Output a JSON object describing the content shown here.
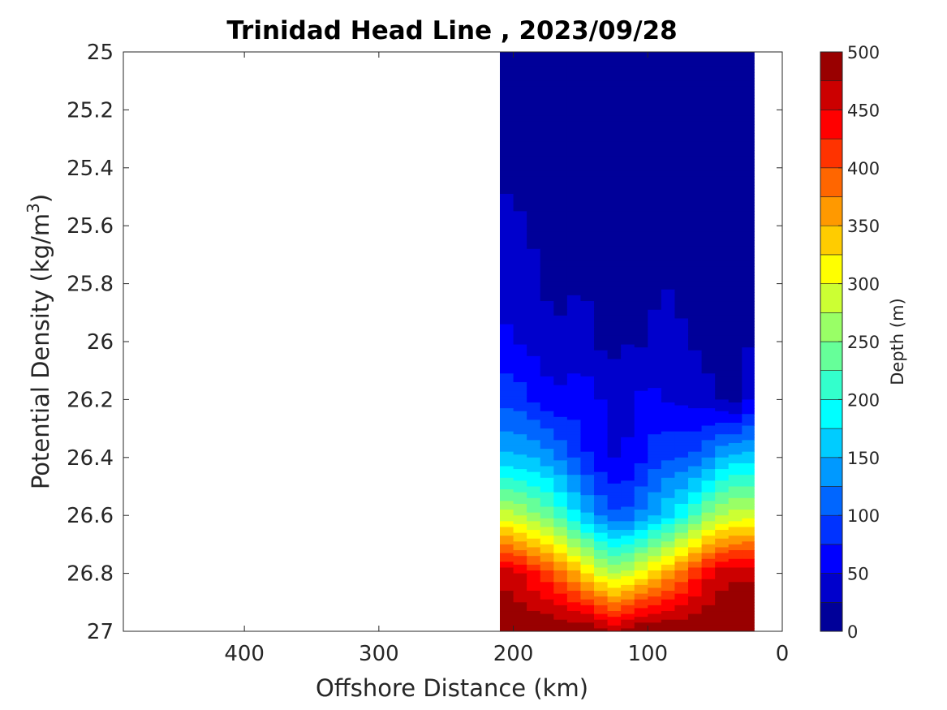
{
  "chart_data": {
    "type": "heatmap",
    "subtype": "filled-contour",
    "title": "Trinidad Head Line , 2023/09/28",
    "xlabel": "Offshore Distance (km)",
    "ylabel": "Potential Density (kg/m",
    "ylabel_sup": "3",
    "ylabel_end": ")",
    "colorbar_label": "Depth (m)",
    "x_reversed": true,
    "y_reversed": true,
    "xlim": [
      0,
      490
    ],
    "ylim": [
      25,
      27
    ],
    "x_ticks": [
      400,
      300,
      200,
      100,
      0
    ],
    "y_ticks": [
      25,
      25.2,
      25.4,
      25.6,
      25.8,
      26,
      26.2,
      26.4,
      26.6,
      26.8,
      27
    ],
    "y_tick_labels": [
      "25",
      "25.2",
      "25.4",
      "25.6",
      "25.8",
      "26",
      "26.2",
      "26.4",
      "26.6",
      "26.8",
      "27"
    ],
    "colorbar_ticks": [
      0,
      50,
      100,
      150,
      200,
      250,
      300,
      350,
      400,
      450,
      500
    ],
    "colorbar_range": [
      0,
      500
    ],
    "contour_step": 25,
    "colormap": "jet",
    "data_extent_x": [
      21,
      210
    ],
    "stations_km": [
      210,
      200,
      190,
      180,
      170,
      160,
      150,
      140,
      130,
      120,
      110,
      100,
      90,
      80,
      70,
      60,
      50,
      40,
      30,
      21
    ],
    "isopycnal_depth_m": {
      "25.4": [
        20,
        20,
        16,
        10,
        6,
        10,
        12,
        6,
        2,
        1,
        1,
        2,
        8,
        5,
        1,
        1,
        1,
        1,
        1,
        1
      ],
      "25.8": [
        45,
        40,
        34,
        26,
        17,
        20,
        25,
        15,
        5,
        10,
        8,
        5,
        30,
        15,
        8,
        5,
        2,
        2,
        2,
        2
      ],
      "26.0": [
        55,
        52,
        46,
        38,
        30,
        31,
        42,
        30,
        12,
        22,
        25,
        18,
        50,
        40,
        28,
        15,
        8,
        5,
        3,
        40
      ],
      "26.2": [
        93,
        90,
        80,
        66,
        56,
        58,
        64,
        56,
        45,
        40,
        50,
        60,
        48,
        45,
        43,
        40,
        30,
        20,
        10,
        90
      ],
      "26.4": [
        155,
        155,
        150,
        145,
        128,
        110,
        88,
        65,
        55,
        45,
        60,
        80,
        96,
        100,
        100,
        110,
        140,
        160,
        160,
        160
      ],
      "26.6": [
        290,
        280,
        262,
        250,
        230,
        200,
        170,
        135,
        110,
        100,
        120,
        140,
        160,
        180,
        210,
        240,
        270,
        280,
        290,
        290
      ],
      "26.8": [
        470,
        460,
        440,
        420,
        400,
        370,
        340,
        310,
        280,
        275,
        300,
        320,
        345,
        370,
        400,
        430,
        460,
        470,
        470,
        470
      ],
      "27.0": [
        500,
        500,
        500,
        500,
        500,
        500,
        500,
        500,
        470,
        470,
        500,
        500,
        500,
        500,
        500,
        500,
        500,
        500,
        500,
        500
      ]
    }
  }
}
